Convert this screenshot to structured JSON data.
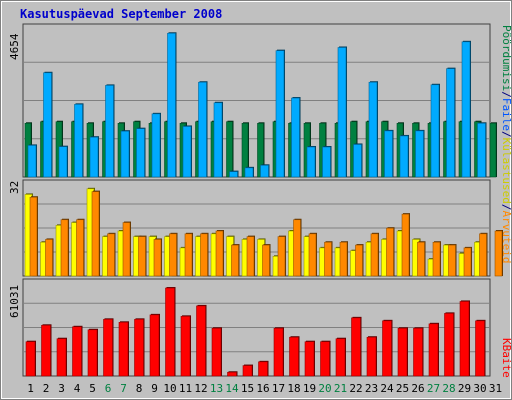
{
  "chart_data": {
    "type": "bar",
    "title": "Kasutuspäevad September 2008",
    "categories": [
      "1",
      "2",
      "3",
      "4",
      "5",
      "6",
      "7",
      "8",
      "9",
      "10",
      "11",
      "12",
      "13",
      "14",
      "15",
      "16",
      "17",
      "18",
      "19",
      "20",
      "21",
      "22",
      "23",
      "24",
      "25",
      "26",
      "27",
      "28",
      "29",
      "30",
      "31"
    ],
    "weekend_days": [
      "6",
      "7",
      "13",
      "14",
      "20",
      "21",
      "27",
      "28"
    ],
    "panels": [
      {
        "name": "top",
        "ymax_label": "4654",
        "ymax": 4654,
        "series": [
          {
            "name": "Pöördumisi",
            "color": "#008040",
            "values": [
              1700,
              1750,
              1750,
              1750,
              1700,
              1750,
              1700,
              1750,
              1700,
              1750,
              1700,
              1750,
              1750,
              1750,
              1700,
              1700,
              1750,
              1700,
              1700,
              1700,
              1700,
              1750,
              1750,
              1750,
              1700,
              1700,
              1700,
              1750,
              1750,
              1750,
              1700
            ]
          },
          {
            "name": "Faile",
            "color": "#00aaff",
            "values": [
              1000,
              3300,
              960,
              2300,
              1260,
              2900,
              1450,
              1530,
              2000,
              4550,
              1600,
              3000,
              2350,
              170,
              290,
              370,
              4000,
              2500,
              950,
              950,
              4100,
              1030,
              3000,
              1460,
              1300,
              1460,
              2920,
              3430,
              4280,
              1700,
              0
            ]
          }
        ]
      },
      {
        "name": "middle",
        "ymax_label": "32",
        "ymax": 32,
        "series": [
          {
            "name": "Külastused",
            "color": "#ffff00",
            "values": [
              29,
              12,
              18,
              19,
              31,
              14,
              16,
              14,
              14,
              14,
              10,
              14,
              15,
              14,
              13,
              13,
              7,
              16,
              14,
              10,
              10,
              9,
              12,
              13,
              16,
              13,
              6,
              11,
              8,
              12,
              0
            ]
          },
          {
            "name": "Arvuteid",
            "color": "#ff8800",
            "values": [
              28,
              13,
              20,
              20,
              30,
              15,
              19,
              14,
              13,
              15,
              15,
              15,
              16,
              11,
              14,
              11,
              14,
              20,
              15,
              12,
              12,
              11,
              15,
              17,
              22,
              12,
              12,
              11,
              10,
              15,
              16
            ]
          }
        ]
      },
      {
        "name": "bottom",
        "ymax_label": "61031",
        "ymax": 61031,
        "series": [
          {
            "name": "KBaite",
            "color": "#ff0000",
            "values": [
              23000,
              34000,
              25000,
              33000,
              31000,
              38000,
              36000,
              38000,
              41000,
              59000,
              40000,
              47000,
              32000,
              2500,
              7000,
              9500,
              32000,
              26000,
              23000,
              23000,
              25000,
              39000,
              26000,
              37000,
              32000,
              32000,
              35000,
              42000,
              50000,
              37000,
              0
            ]
          }
        ]
      }
    ],
    "legend": [
      "Pöördumisi",
      "Faile",
      "Külastused",
      "Arvuteid",
      "KBaite"
    ],
    "legend_separator": "/",
    "legend_position": "right-vertical"
  }
}
